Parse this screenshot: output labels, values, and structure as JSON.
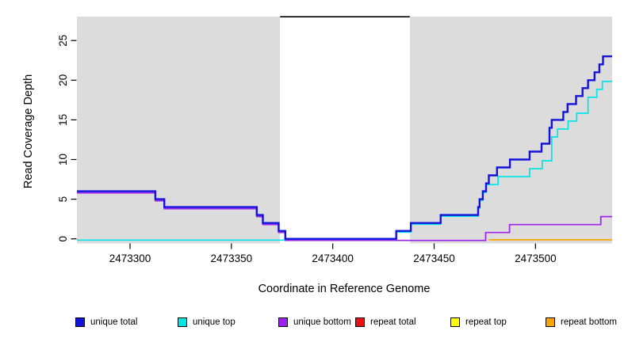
{
  "figure": {
    "title": "",
    "x_axis_label": "Coordinate in Reference Genome",
    "y_axis_label": "Read Coverage Depth"
  },
  "chart_data": {
    "type": "line",
    "subtype": "step-coverage-plot",
    "title": "",
    "xlabel": "Coordinate in Reference Genome",
    "ylabel": "Read Coverage Depth",
    "xlim": [
      2473273.8,
      2473537.8
    ],
    "ylim": [
      0,
      28
    ],
    "grid": false,
    "x_ticks": [
      {
        "value": 2473300,
        "label": "2473300"
      },
      {
        "value": 2473350,
        "label": "2473350"
      },
      {
        "value": 2473400,
        "label": "2473400"
      },
      {
        "value": 2473450,
        "label": "2473450"
      },
      {
        "value": 2473500,
        "label": "2473500"
      }
    ],
    "y_ticks": [
      {
        "value": 0,
        "label": "0"
      },
      {
        "value": 5,
        "label": "5"
      },
      {
        "value": 10,
        "label": "10"
      },
      {
        "value": 15,
        "label": "15"
      },
      {
        "value": 20,
        "label": "20"
      },
      {
        "value": 25,
        "label": "25"
      }
    ],
    "shaded_regions": [
      {
        "name": "left-covered-region",
        "from": 2473273.8,
        "to": 2473374,
        "color": "#DCDCDC"
      },
      {
        "name": "right-covered-region",
        "from": 2473438,
        "to": 2473537.8,
        "color": "#DCDCDC"
      }
    ],
    "gap_region": {
      "name": "assembly-gap",
      "from": 2473374,
      "to": 2473438,
      "fill": "#FFFFFF",
      "top_line_y": 28,
      "top_line_color": "#000000"
    },
    "series": [
      {
        "name": "unique total",
        "color": "#1212DC",
        "visible": true,
        "width": 2.4,
        "offset": 0,
        "steps": [
          [
            2473273.8,
            6
          ],
          [
            2473312.5,
            5
          ],
          [
            2473316.9,
            4
          ],
          [
            2473362.5,
            3
          ],
          [
            2473365.5,
            2
          ],
          [
            2473373.3,
            1
          ],
          [
            2473376.6,
            0
          ],
          [
            2473431.3,
            1
          ],
          [
            2473438.5,
            2
          ],
          [
            2473453.2,
            3
          ],
          [
            2473471.7,
            4
          ],
          [
            2473472.4,
            5
          ],
          [
            2473474.0,
            6
          ],
          [
            2473475.6,
            7
          ],
          [
            2473477.0,
            8
          ],
          [
            2473481.0,
            9
          ],
          [
            2473487.4,
            10
          ],
          [
            2473497.1,
            11
          ],
          [
            2473503.0,
            12
          ],
          [
            2473506.9,
            14
          ],
          [
            2473508.0,
            15
          ],
          [
            2473513.7,
            16
          ],
          [
            2473515.8,
            17
          ],
          [
            2473520.0,
            18
          ],
          [
            2473523.2,
            19
          ],
          [
            2473525.9,
            20
          ],
          [
            2473529.1,
            21
          ],
          [
            2473531.5,
            22
          ],
          [
            2473533.3,
            23
          ]
        ]
      },
      {
        "name": "unique top",
        "color": "#00E5E5",
        "visible": true,
        "width": 1.7,
        "offset": 1.6,
        "steps": [
          [
            2473273.8,
            0
          ],
          [
            2473431.3,
            1
          ],
          [
            2473438.5,
            2
          ],
          [
            2473453.2,
            3
          ],
          [
            2473471.7,
            4
          ],
          [
            2473472.4,
            5
          ],
          [
            2473474.0,
            6
          ],
          [
            2473475.6,
            7
          ],
          [
            2473481.5,
            8
          ],
          [
            2473497.1,
            9
          ],
          [
            2473503.3,
            10
          ],
          [
            2473508.0,
            13
          ],
          [
            2473510.9,
            14
          ],
          [
            2473516.1,
            15
          ],
          [
            2473520.3,
            16
          ],
          [
            2473525.9,
            18
          ],
          [
            2473530.2,
            19
          ],
          [
            2473533.0,
            20
          ]
        ]
      },
      {
        "name": "unique bottom",
        "color": "#A020F0",
        "visible": true,
        "width": 1.7,
        "offset": 2.0,
        "steps": [
          [
            2473273.8,
            6
          ],
          [
            2473312.5,
            5
          ],
          [
            2473316.9,
            4
          ],
          [
            2473362.5,
            3
          ],
          [
            2473365.5,
            2
          ],
          [
            2473373.3,
            1
          ],
          [
            2473376.6,
            0
          ],
          [
            2473475.4,
            1
          ],
          [
            2473487.2,
            2
          ],
          [
            2473532.2,
            3
          ]
        ]
      },
      {
        "name": "repeat total",
        "color": "#E81010",
        "visible": false,
        "width": 1.7,
        "offset": 0,
        "steps": []
      },
      {
        "name": "repeat top",
        "color": "#FFFF00",
        "visible": false,
        "width": 1.7,
        "offset": 0,
        "steps": []
      },
      {
        "name": "repeat bottom",
        "color": "#FFA500",
        "visible": true,
        "width": 1.7,
        "offset": 1.2,
        "steps": [
          [
            2473477,
            0
          ]
        ]
      }
    ],
    "draw_order": [
      1,
      2,
      5,
      3,
      4,
      0
    ],
    "legend": {
      "position": "bottom",
      "stray_mark": "'",
      "items": [
        {
          "label": "unique total",
          "color": "#1212DC"
        },
        {
          "label": "unique top",
          "color": "#00E5E5"
        },
        {
          "label": "unique bottom",
          "color": "#A020F0"
        },
        {
          "label": "repeat total",
          "color": "#E81010"
        },
        {
          "label": "repeat top",
          "color": "#FFFF00"
        },
        {
          "label": "repeat bottom",
          "color": "#FFA500"
        }
      ]
    }
  }
}
